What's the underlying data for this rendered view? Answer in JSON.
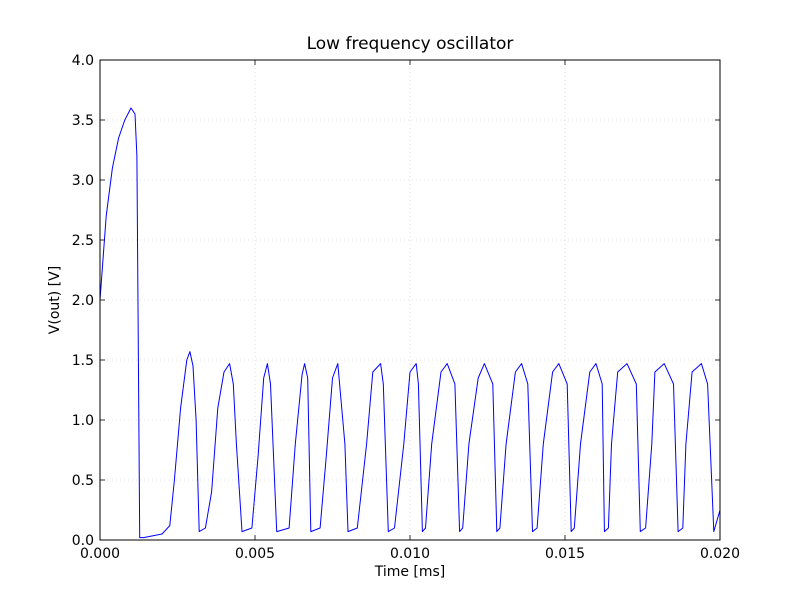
{
  "chart_data": {
    "type": "line",
    "title": "Low frequency oscillator",
    "xlabel": "Time [ms]",
    "ylabel": "V(out) [V]",
    "xlim": [
      0.0,
      0.02
    ],
    "ylim": [
      0.0,
      4.0
    ],
    "x_ticks": [
      "0.000",
      "0.005",
      "0.010",
      "0.015",
      "0.020"
    ],
    "x_tick_values": [
      0.0,
      0.005,
      0.01,
      0.015,
      0.02
    ],
    "y_ticks": [
      "0.0",
      "0.5",
      "1.0",
      "1.5",
      "2.0",
      "2.5",
      "3.0",
      "3.5",
      "4.0"
    ],
    "y_tick_values": [
      0.0,
      0.5,
      1.0,
      1.5,
      2.0,
      2.5,
      3.0,
      3.5,
      4.0
    ],
    "grid": true,
    "series_color": "#0000ff",
    "series": [
      {
        "x": [
          0.0,
          0.0002,
          0.0004,
          0.0006,
          0.0008,
          0.001,
          0.00113,
          0.00119,
          0.00128,
          0.0014,
          0.002,
          0.00225,
          0.0024,
          0.0026,
          0.0028,
          0.0029,
          0.003,
          0.0031,
          0.0032,
          0.0034,
          0.0036,
          0.0038,
          0.004,
          0.00418,
          0.0043,
          0.0044,
          0.00458,
          0.0049,
          0.0051,
          0.00528,
          0.0054,
          0.0055,
          0.0057,
          0.0061,
          0.0063,
          0.00652,
          0.0066,
          0.0067,
          0.0068,
          0.0071,
          0.0073,
          0.0075,
          0.00767,
          0.0079,
          0.008,
          0.0083,
          0.0086,
          0.0088,
          0.00905,
          0.00914,
          0.0093,
          0.0095,
          0.0098,
          0.01,
          0.0102,
          0.01027,
          0.0104,
          0.0105,
          0.0107,
          0.011,
          0.0112,
          0.01145,
          0.0116,
          0.0117,
          0.0119,
          0.0122,
          0.0124,
          0.01267,
          0.0128,
          0.0129,
          0.0131,
          0.0134,
          0.0136,
          0.0138,
          0.01395,
          0.0141,
          0.0143,
          0.0146,
          0.0148,
          0.01507,
          0.0152,
          0.0153,
          0.0155,
          0.0158,
          0.016,
          0.0162,
          0.01627,
          0.0164,
          0.0165,
          0.0167,
          0.017,
          0.0173,
          0.01743,
          0.0176,
          0.0178,
          0.0179,
          0.0182,
          0.0185,
          0.01865,
          0.0188,
          0.0189,
          0.0191,
          0.0194,
          0.0196,
          0.0198,
          0.02
        ],
        "y": [
          2.0,
          2.7,
          3.1,
          3.35,
          3.5,
          3.6,
          3.55,
          3.2,
          0.02,
          0.02,
          0.05,
          0.12,
          0.5,
          1.1,
          1.5,
          1.57,
          1.45,
          1.0,
          0.07,
          0.1,
          0.4,
          1.1,
          1.4,
          1.47,
          1.3,
          0.8,
          0.07,
          0.1,
          0.7,
          1.35,
          1.47,
          1.3,
          0.07,
          0.1,
          0.8,
          1.38,
          1.47,
          1.35,
          0.07,
          0.1,
          0.7,
          1.35,
          1.47,
          0.8,
          0.07,
          0.1,
          0.8,
          1.4,
          1.47,
          1.3,
          0.07,
          0.1,
          0.8,
          1.4,
          1.47,
          1.3,
          0.07,
          0.1,
          0.8,
          1.4,
          1.47,
          1.3,
          0.07,
          0.1,
          0.8,
          1.35,
          1.47,
          1.3,
          0.07,
          0.1,
          0.8,
          1.4,
          1.47,
          1.3,
          0.07,
          0.1,
          0.8,
          1.4,
          1.47,
          1.3,
          0.07,
          0.1,
          0.8,
          1.4,
          1.47,
          1.3,
          0.07,
          0.1,
          0.8,
          1.4,
          1.47,
          1.3,
          0.07,
          0.1,
          0.8,
          1.4,
          1.47,
          1.3,
          0.07,
          0.1,
          0.8,
          1.4,
          1.47,
          1.3,
          0.07,
          0.25
        ]
      }
    ]
  }
}
